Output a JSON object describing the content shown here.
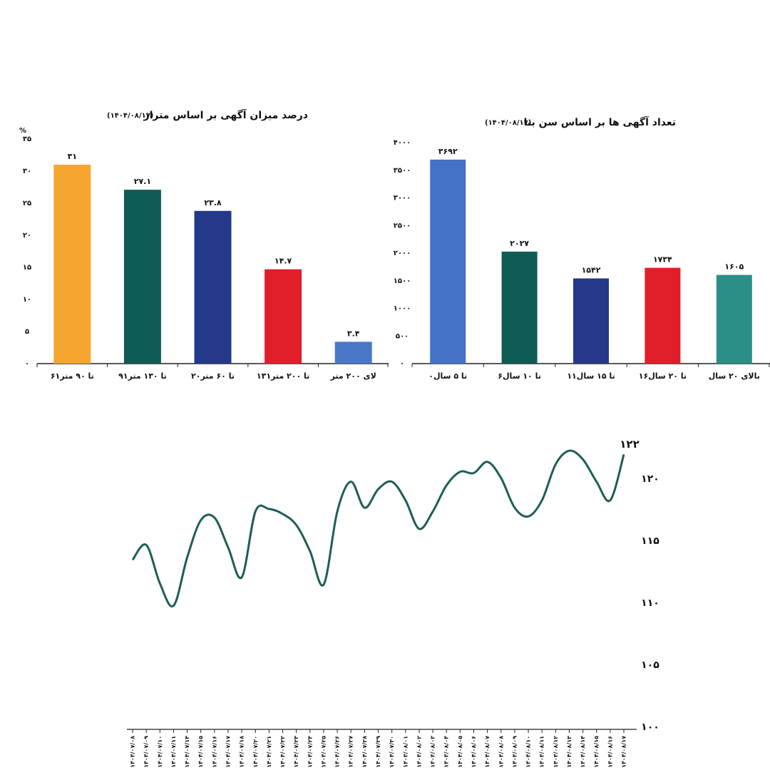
{
  "chart_data": [
    {
      "type": "bar",
      "title": "درصد میزان آگهی بر اساس متراژ",
      "subtitle": "(۱۴۰۴/۰۸/۱۷)",
      "y_unit": "%",
      "categories": [
        "۶۱تا ۹۰ متر",
        "۹۱تا ۱۳۰ متر",
        "۲۰تا ۶۰ متر",
        "۱۳۱تا ۲۰۰ متر",
        "لای ۲۰۰ متر"
      ],
      "values": [
        31,
        27.1,
        23.8,
        14.7,
        3.4
      ],
      "value_labels": [
        "۳۱",
        "۲۷.۱",
        "۲۳.۸",
        "۱۴.۷",
        "۳.۴"
      ],
      "colors": [
        "#f5a62f",
        "#0f5c55",
        "#24398a",
        "#e11f2b",
        "#4a76c8"
      ],
      "ylim": [
        0,
        35
      ],
      "yticks": [
        {
          "value": 0,
          "label": "۰"
        },
        {
          "value": 5,
          "label": "۵"
        },
        {
          "value": 10,
          "label": "۱۰"
        },
        {
          "value": 15,
          "label": "۱۵"
        },
        {
          "value": 20,
          "label": "۲۰"
        },
        {
          "value": 25,
          "label": "۲۵"
        },
        {
          "value": 30,
          "label": "۳۰"
        },
        {
          "value": 35,
          "label": "۳۵"
        }
      ]
    },
    {
      "type": "bar",
      "title": "تعداد آگهی ها بر اساس سن بنا",
      "subtitle": "(۱۴۰۴/۰۸/۱۷)",
      "categories": [
        "۰تا ۵ سال",
        "۶تا ۱۰ سال",
        "۱۱تا ۱۵ سال",
        "۱۶تا ۲۰ سال",
        "بالای ۲۰ سال"
      ],
      "values": [
        3692,
        2027,
        1542,
        1734,
        1605
      ],
      "value_labels": [
        "۳۶۹۲",
        "۲۰۲۷",
        "۱۵۴۲",
        "۱۷۳۴",
        "۱۶۰۵"
      ],
      "colors": [
        "#4472c4",
        "#0f5c55",
        "#24398a",
        "#e11f2b",
        "#2a8f86"
      ],
      "ylim": [
        0,
        4000
      ],
      "yticks": [
        {
          "value": 0,
          "label": "۰"
        },
        {
          "value": 500,
          "label": "۵۰۰"
        },
        {
          "value": 1000,
          "label": "۱۰۰۰"
        },
        {
          "value": 1500,
          "label": "۱۵۰۰"
        },
        {
          "value": 2000,
          "label": "۲۰۰۰"
        },
        {
          "value": 2500,
          "label": "۲۵۰۰"
        },
        {
          "value": 3000,
          "label": "۳۰۰۰"
        },
        {
          "value": 3500,
          "label": "۳۵۰۰"
        },
        {
          "value": 4000,
          "label": "۴۰۰۰"
        }
      ]
    },
    {
      "type": "line",
      "color": "#1d5e56",
      "end_label": "۱۲۲",
      "categories": [
        "۱۴۰۴/۰۷/۰۸",
        "۱۴۰۴/۰۷/۰۹",
        "۱۴۰۴/۰۷/۱۰",
        "۱۴۰۴/۰۷/۱۱",
        "۱۴۰۴/۰۷/۱۴",
        "۱۴۰۴/۰۷/۱۵",
        "۱۴۰۴/۰۷/۱۶",
        "۱۴۰۴/۰۷/۱۷",
        "۱۴۰۴/۰۷/۱۸",
        "۱۴۰۴/۰۷/۲۰",
        "۱۴۰۴/۰۷/۲۱",
        "۱۴۰۴/۰۷/۲۲",
        "۱۴۰۴/۰۷/۲۳",
        "۱۴۰۴/۰۷/۲۴",
        "۱۴۰۴/۰۷/۲۵",
        "۱۴۰۴/۰۷/۲۶",
        "۱۴۰۴/۰۷/۲۷",
        "۱۴۰۴/۰۷/۲۸",
        "۱۴۰۴/۰۷/۲۹",
        "۱۴۰۴/۰۷/۳۰",
        "۱۴۰۴/۰۸/۰۱",
        "۱۴۰۴/۰۸/۰۲",
        "۱۴۰۴/۰۸/۰۳",
        "۱۴۰۴/۰۸/۰۴",
        "۱۴۰۴/۰۸/۰۵",
        "۱۴۰۴/۰۸/۰۶",
        "۱۴۰۴/۰۸/۰۷",
        "۱۴۰۴/۰۸/۰۸",
        "۱۴۰۴/۰۸/۰۹",
        "۱۴۰۴/۰۸/۱۰",
        "۱۴۰۴/۰۸/۱۱",
        "۱۴۰۴/۰۸/۱۲",
        "۱۴۰۴/۰۸/۱۳",
        "۱۴۰۴/۰۸/۱۴",
        "۱۴۰۴/۰۸/۱۵",
        "۱۴۰۴/۰۸/۱۶",
        "۱۴۰۴/۰۸/۱۷"
      ],
      "values": [
        113.5,
        114.7,
        111.6,
        109.8,
        113.7,
        116.7,
        116.9,
        114.5,
        112.1,
        117.4,
        117.6,
        117.2,
        116.3,
        114.2,
        111.5,
        117.4,
        119.8,
        117.7,
        119.2,
        119.8,
        118.3,
        116.0,
        117.4,
        119.5,
        120.6,
        120.5,
        121.4,
        120.1,
        117.7,
        117.0,
        118.3,
        121.2,
        122.3,
        121.6,
        119.8,
        118.3,
        122
      ],
      "ylim": [
        100,
        123
      ],
      "yticks": [
        {
          "value": 100,
          "label": "۱۰۰"
        },
        {
          "value": 105,
          "label": "۱۰۵"
        },
        {
          "value": 110,
          "label": "۱۱۰"
        },
        {
          "value": 115,
          "label": "۱۱۵"
        },
        {
          "value": 120,
          "label": "۱۲۰"
        }
      ]
    }
  ]
}
